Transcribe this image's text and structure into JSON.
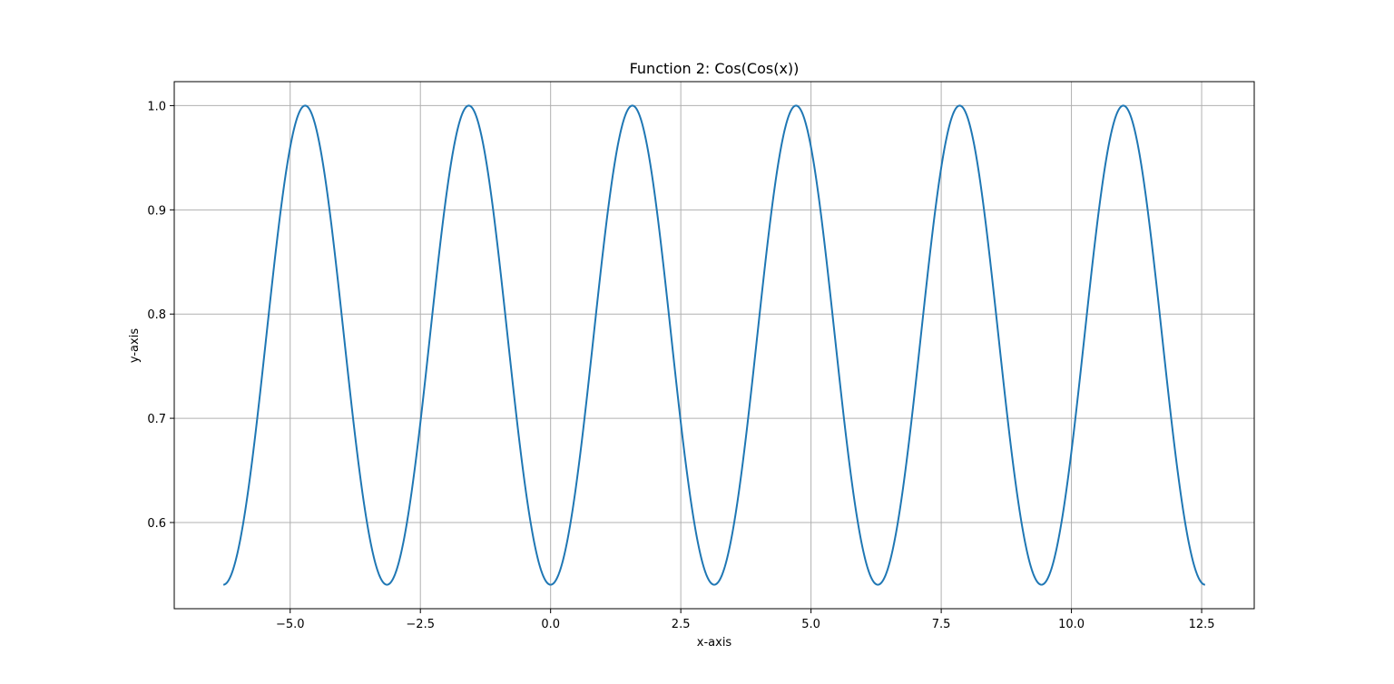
{
  "chart_data": {
    "type": "line",
    "title": "Function 2: Cos(Cos(x))",
    "xlabel": "x-axis",
    "ylabel": "y-axis",
    "function": "cos(cos(x))",
    "xlim": [
      -7.2257,
      13.5097
    ],
    "ylim": [
      0.5173,
      1.023
    ],
    "x_domain": [
      -6.2832,
      12.5664
    ],
    "x_ticks": [
      -5.0,
      -2.5,
      0.0,
      2.5,
      5.0,
      7.5,
      10.0,
      12.5
    ],
    "x_tick_labels": [
      "−5.0",
      "−2.5",
      "0.0",
      "2.5",
      "5.0",
      "7.5",
      "10.0",
      "12.5"
    ],
    "y_ticks": [
      0.6,
      0.7,
      0.8,
      0.9,
      1.0
    ],
    "y_tick_labels": [
      "0.6",
      "0.7",
      "0.8",
      "0.9",
      "1.0"
    ],
    "grid": true,
    "series": [
      {
        "color": "#1f77b4",
        "x": [
          -6.2832,
          -5.8905,
          -5.4978,
          -5.1051,
          -4.7124,
          -4.3197,
          -3.927,
          -3.5343,
          -3.1416,
          -2.7489,
          -2.3562,
          -1.9635,
          -1.5708,
          -1.1781,
          -0.7854,
          -0.3927,
          0.0,
          0.3927,
          0.7854,
          1.1781,
          1.5708,
          1.9635,
          2.3562,
          2.7489,
          3.1416,
          3.5343,
          3.927,
          4.3197,
          4.7124,
          5.1051,
          5.4978,
          5.8905,
          6.2832,
          6.6759,
          7.0686,
          7.4613,
          7.854,
          8.2467,
          8.6394,
          9.0321,
          9.4248,
          9.8175,
          10.2102,
          10.6029,
          10.9956,
          11.3883,
          11.781,
          12.1737,
          12.5664
        ],
        "y": [
          0.5403,
          0.6015,
          0.7602,
          0.9282,
          1.0,
          0.9282,
          0.7602,
          0.6015,
          0.5403,
          0.6015,
          0.7602,
          0.9282,
          1.0,
          0.9282,
          0.7602,
          0.6015,
          0.5403,
          0.6015,
          0.7602,
          0.9282,
          1.0,
          0.9282,
          0.7602,
          0.6015,
          0.5403,
          0.6015,
          0.7602,
          0.9282,
          1.0,
          0.9282,
          0.7602,
          0.6015,
          0.5403,
          0.6015,
          0.7602,
          0.9282,
          1.0,
          0.9282,
          0.7602,
          0.6015,
          0.5403,
          0.6015,
          0.7602,
          0.9282,
          1.0,
          0.9282,
          0.7602,
          0.6015,
          0.5403
        ]
      }
    ]
  },
  "colors": {
    "line": "#1f77b4",
    "grid": "#b0b0b0",
    "axes": "#000000",
    "background": "#ffffff"
  }
}
